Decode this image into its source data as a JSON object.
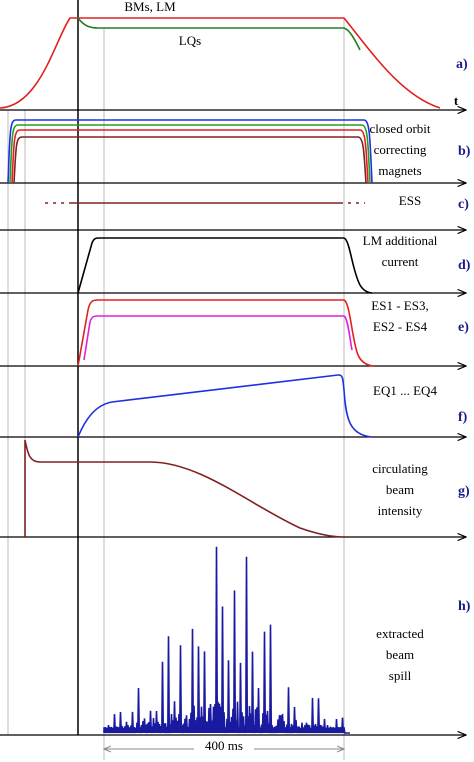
{
  "panels": [
    {
      "letter": "a)",
      "top_label": "BMs, LM",
      "inner_label": "LQs",
      "axis_label": "t"
    },
    {
      "letter": "b)",
      "label": [
        "closed orbit",
        "correcting",
        "magnets"
      ]
    },
    {
      "letter": "c)",
      "label": [
        "ESS"
      ]
    },
    {
      "letter": "d)",
      "label": [
        "LM additional",
        "current"
      ]
    },
    {
      "letter": "e)",
      "label": [
        "ES1 - ES3,",
        "ES2 - ES4"
      ]
    },
    {
      "letter": "f)",
      "label": [
        "EQ1 ... EQ4"
      ]
    },
    {
      "letter": "g)",
      "label": [
        "circulating",
        "beam",
        "intensity"
      ]
    },
    {
      "letter": "h)",
      "label": [
        "extracted",
        "beam",
        "spill"
      ]
    }
  ],
  "duration_label": "400 ms"
}
